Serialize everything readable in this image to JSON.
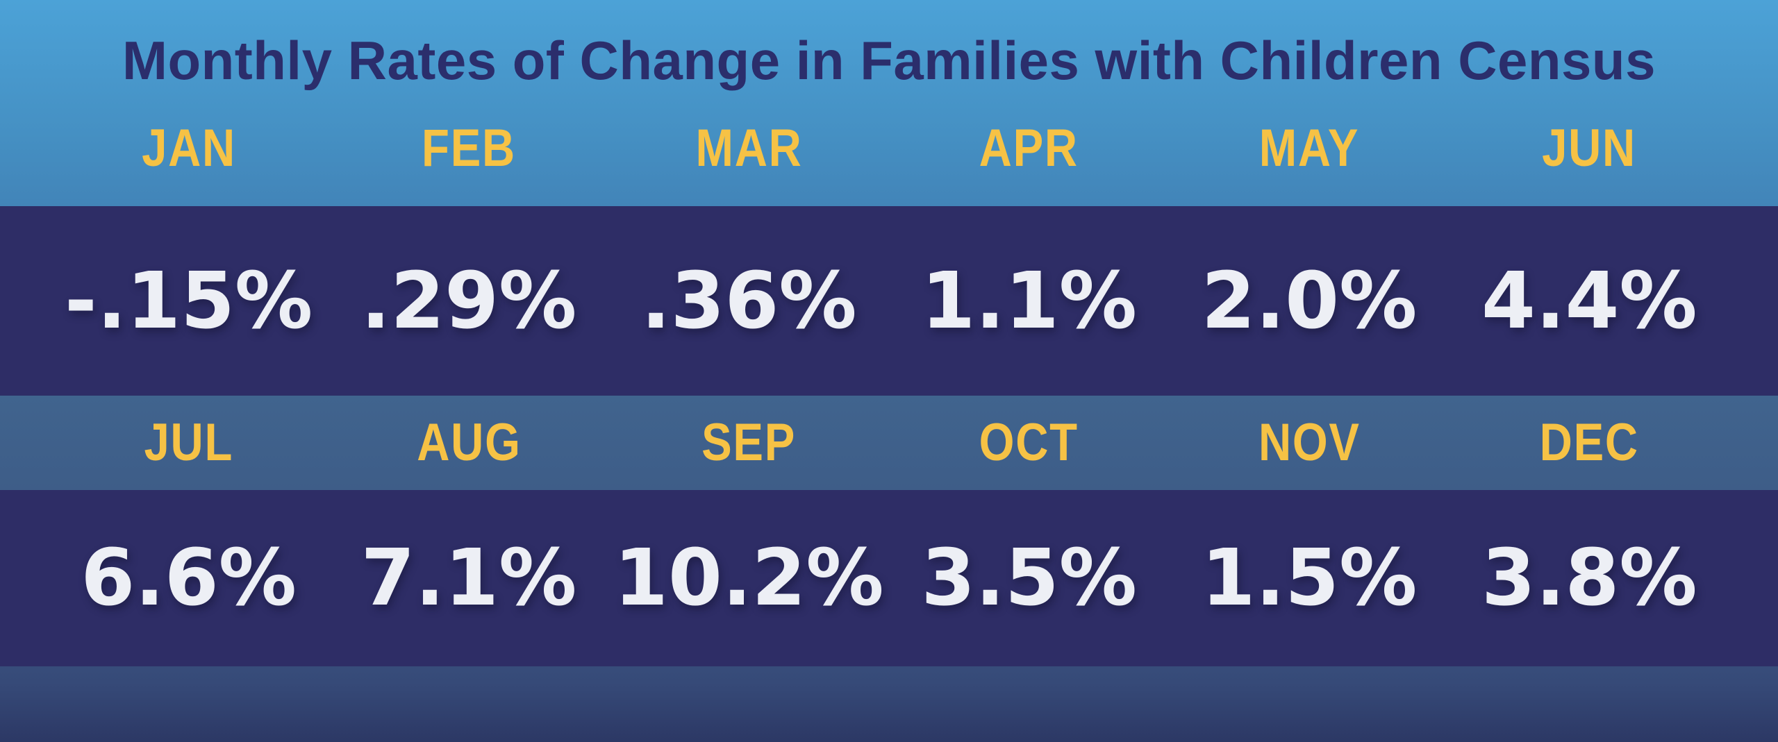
{
  "header": {
    "title": "Monthly Rates of Change in Families with Children Census"
  },
  "table": {
    "row1": {
      "months": [
        "JAN",
        "FEB",
        "MAR",
        "APR",
        "MAY",
        "JUN"
      ],
      "values": [
        "-.15%",
        ".29%",
        ".36%",
        "1.1%",
        "2.0%",
        "4.4%"
      ]
    },
    "row2": {
      "months": [
        "JUL",
        "AUG",
        "SEP",
        "OCT",
        "NOV",
        "DEC"
      ],
      "values": [
        "6.6%",
        "7.1%",
        "10.2%",
        "3.5%",
        "1.5%",
        "3.8%"
      ]
    }
  },
  "colors": {
    "background_top": "#4CA2D7",
    "background_bottom": "#2C3865",
    "navy_band": "#2E2D66",
    "steel_band": "#40648E",
    "month_yellow": "#F6C245",
    "value_white": "#EDEFF5",
    "title_navy": "#2B2E6C"
  },
  "chart_data": {
    "type": "table",
    "title": "Monthly Rates of Change in Families with Children Census",
    "categories": [
      "JAN",
      "FEB",
      "MAR",
      "APR",
      "MAY",
      "JUN",
      "JUL",
      "AUG",
      "SEP",
      "OCT",
      "NOV",
      "DEC"
    ],
    "values": [
      -0.15,
      0.29,
      0.36,
      1.1,
      2.0,
      4.4,
      6.6,
      7.1,
      10.2,
      3.5,
      1.5,
      3.8
    ],
    "value_labels": [
      "-.15%",
      ".29%",
      ".36%",
      "1.1%",
      "2.0%",
      "4.4%",
      "6.6%",
      "7.1%",
      "10.2%",
      "3.5%",
      "1.5%",
      "3.8%"
    ],
    "unit": "%",
    "layout": "two rows of six months; month headers on blue bands, values on dark indigo bands"
  }
}
